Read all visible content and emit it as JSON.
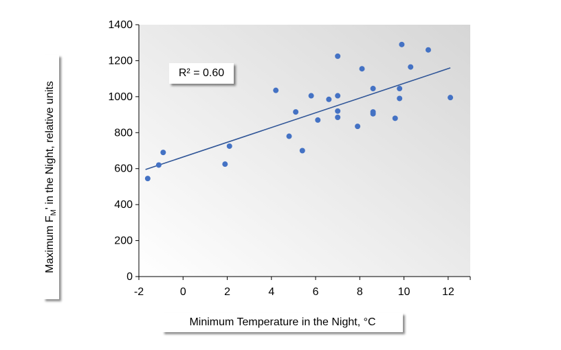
{
  "chart_data": {
    "type": "scatter",
    "xlabel": "Minimum Temperature in the Night, °C",
    "ylabel": {
      "prefix": "Maximum F",
      "subscript": "M",
      "suffix": "' in the Night, relative units"
    },
    "xlim": [
      -2,
      13
    ],
    "ylim": [
      0,
      1400
    ],
    "xticks": [
      -2,
      0,
      2,
      4,
      6,
      8,
      10,
      12
    ],
    "yticks": [
      0,
      200,
      400,
      600,
      800,
      1000,
      1200,
      1400
    ],
    "grid": false,
    "annotation": "R² = 0.60",
    "trendline": {
      "type": "linear",
      "x": [
        -1.7,
        12.1
      ],
      "y": [
        595,
        1160
      ]
    },
    "points": [
      {
        "x": -1.6,
        "y": 545
      },
      {
        "x": -1.1,
        "y": 620
      },
      {
        "x": -0.9,
        "y": 690
      },
      {
        "x": 1.9,
        "y": 625
      },
      {
        "x": 2.1,
        "y": 725
      },
      {
        "x": 4.2,
        "y": 1035
      },
      {
        "x": 4.8,
        "y": 780
      },
      {
        "x": 5.1,
        "y": 915
      },
      {
        "x": 5.4,
        "y": 700
      },
      {
        "x": 5.8,
        "y": 1005
      },
      {
        "x": 6.1,
        "y": 870
      },
      {
        "x": 6.6,
        "y": 985
      },
      {
        "x": 7.0,
        "y": 1225
      },
      {
        "x": 7.0,
        "y": 1005
      },
      {
        "x": 7.0,
        "y": 920
      },
      {
        "x": 7.0,
        "y": 885
      },
      {
        "x": 7.9,
        "y": 835
      },
      {
        "x": 8.1,
        "y": 1155
      },
      {
        "x": 8.6,
        "y": 1045
      },
      {
        "x": 8.6,
        "y": 915
      },
      {
        "x": 8.6,
        "y": 905
      },
      {
        "x": 9.6,
        "y": 880
      },
      {
        "x": 9.8,
        "y": 1045
      },
      {
        "x": 9.8,
        "y": 990
      },
      {
        "x": 9.9,
        "y": 1290
      },
      {
        "x": 10.3,
        "y": 1165
      },
      {
        "x": 11.1,
        "y": 1260
      },
      {
        "x": 12.1,
        "y": 995
      }
    ],
    "colors": {
      "point": "#4472c4",
      "trendline": "#2f5597",
      "axis": "#000000",
      "plot_bg_light": "#ffffff",
      "plot_bg_dark": "#d9d9d9"
    }
  }
}
